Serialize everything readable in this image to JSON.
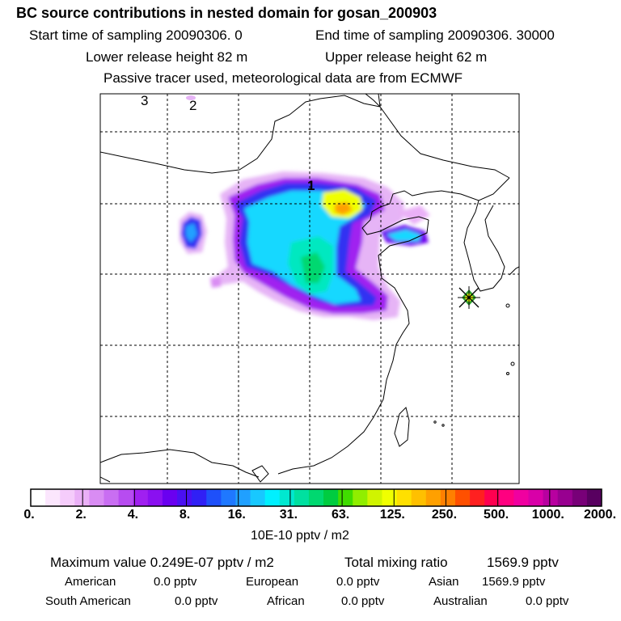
{
  "header": {
    "title": "BC  source contributions in nested domain for gosan_200903",
    "start_label": "Start time of sampling 20090306.     0",
    "end_label": "End time of sampling 20090306. 30000",
    "lower_label": "Lower release height   82 m",
    "upper_label": "Upper release height   62 m",
    "tracer_note": "Passive tracer used, meteorological data are from ECMWF"
  },
  "map": {
    "region_labels": [
      "1",
      "2",
      "3"
    ],
    "receptor": "gosan"
  },
  "colorbar": {
    "colors": [
      "#ffffff",
      "#fbe6fd",
      "#f5ccfb",
      "#eab0f7",
      "#d98cf3",
      "#c96ef2",
      "#b74cf0",
      "#a020f0",
      "#8a10f0",
      "#6a00f0",
      "#4a10f2",
      "#3020f5",
      "#1e50fa",
      "#1f78ff",
      "#20a0ff",
      "#18c8ff",
      "#00f0ff",
      "#00e8d0",
      "#00e0a0",
      "#00d870",
      "#00cc40",
      "#40dd00",
      "#90ee00",
      "#d0f400",
      "#f0ff00",
      "#ffe000",
      "#ffc000",
      "#ffa000",
      "#ff8000",
      "#ff5000",
      "#ff2020",
      "#ff0050",
      "#ff0080",
      "#f000a0",
      "#d800a8",
      "#b800a0",
      "#980090",
      "#780078",
      "#580060"
    ],
    "tick_labels": [
      "0.",
      "2.",
      "4.",
      "8.",
      "16.",
      "31.",
      "63.",
      "125.",
      "250.",
      "500.",
      "1000.",
      "2000."
    ],
    "units": "10E-10 pptv / m2"
  },
  "stats": {
    "max_label": "Maximum value  0.249E-07 pptv / m2",
    "total_label": "Total mixing ratio",
    "total_value": "1569.9 pptv",
    "american_label": "American",
    "american_value": "0.0 pptv",
    "european_label": "European",
    "european_value": "0.0 pptv",
    "asian_label": "Asian",
    "asian_value": "1569.9 pptv",
    "southamerican_label": "South American",
    "southamerican_value": "0.0 pptv",
    "african_label": "African",
    "african_value": "0.0 pptv",
    "australian_label": "Australian",
    "australian_value": "0.0 pptv"
  }
}
